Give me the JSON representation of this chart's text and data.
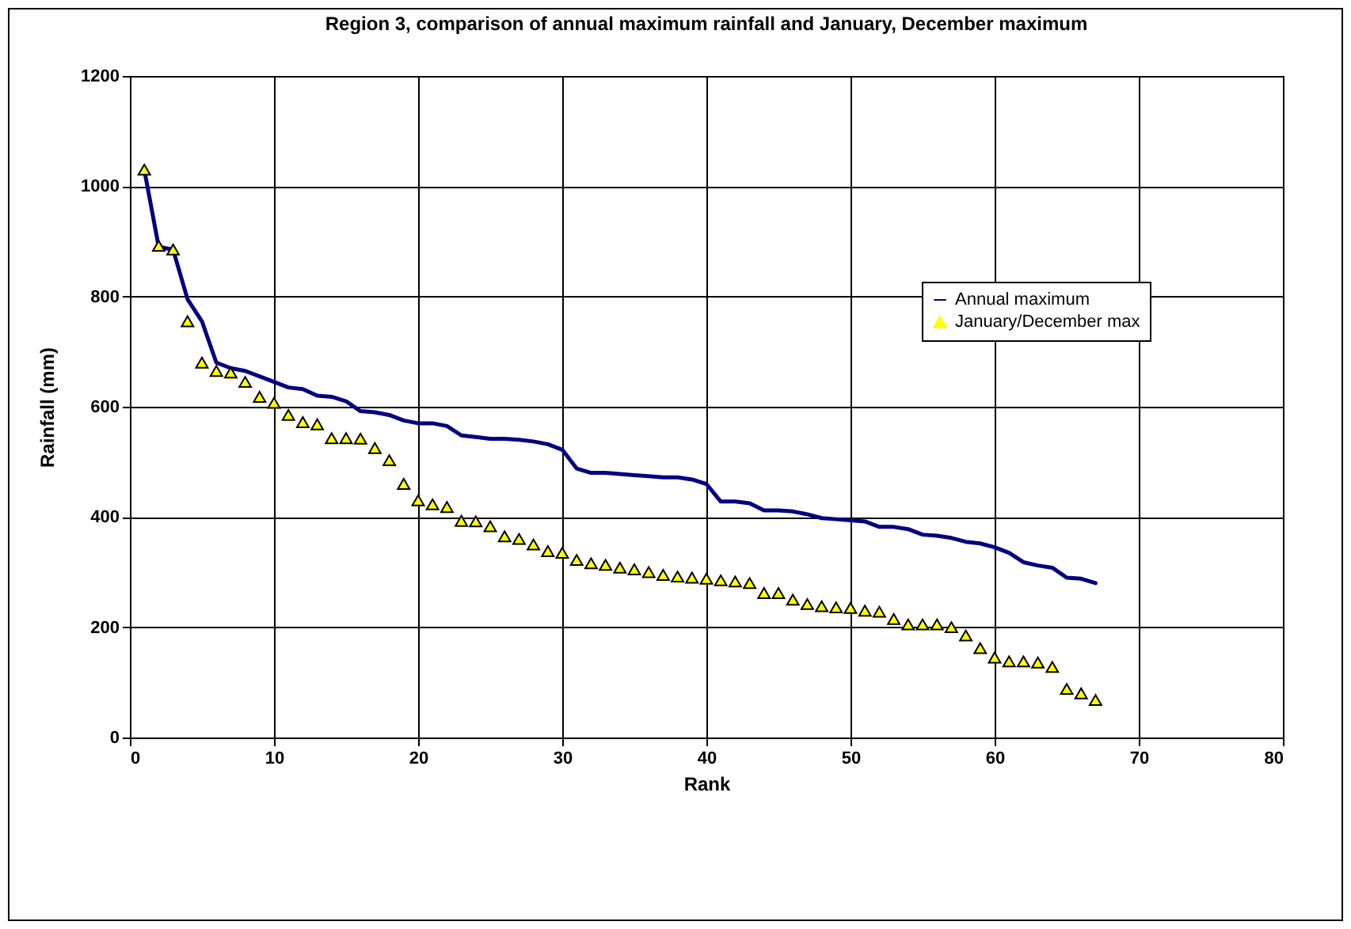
{
  "chart_data": {
    "type": "line",
    "title": "Region 3, comparison of annual maximum rainfall and January, December maximum",
    "xlabel": "Rank",
    "ylabel": "Rainfall (mm)",
    "x": [
      1,
      2,
      3,
      4,
      5,
      6,
      7,
      8,
      9,
      10,
      11,
      12,
      13,
      14,
      15,
      16,
      17,
      18,
      19,
      20,
      21,
      22,
      23,
      24,
      25,
      26,
      27,
      28,
      29,
      30,
      31,
      32,
      33,
      34,
      35,
      36,
      37,
      38,
      39,
      40,
      41,
      42,
      43,
      44,
      45,
      46,
      47,
      48,
      49,
      50,
      51,
      52,
      53,
      54,
      55,
      56,
      57,
      58,
      59,
      60,
      61,
      62,
      63,
      64,
      65,
      66,
      67
    ],
    "series": [
      {
        "name": "Annual maximum",
        "line_style": "solid",
        "color": "#000080",
        "values": [
          1030,
          890,
          885,
          795,
          755,
          680,
          670,
          665,
          655,
          645,
          635,
          632,
          620,
          618,
          610,
          592,
          590,
          585,
          575,
          570,
          570,
          565,
          548,
          545,
          542,
          542,
          540,
          537,
          532,
          522,
          488,
          480,
          480,
          478,
          476,
          474,
          472,
          472,
          468,
          460,
          428,
          428,
          425,
          412,
          412,
          410,
          405,
          398,
          396,
          394,
          392,
          382,
          382,
          378,
          368,
          366,
          362,
          355,
          352,
          345,
          335,
          318,
          312,
          308,
          290,
          288,
          280
        ]
      },
      {
        "name": "January/December max",
        "type": "scatter",
        "marker": "triangle",
        "color": "#ffff00",
        "values": [
          1030,
          892,
          885,
          755,
          680,
          665,
          662,
          645,
          618,
          607,
          585,
          572,
          568,
          543,
          543,
          542,
          525,
          503,
          460,
          430,
          423,
          418,
          393,
          392,
          383,
          365,
          360,
          350,
          338,
          335,
          322,
          316,
          313,
          308,
          305,
          300,
          295,
          292,
          290,
          288,
          285,
          283,
          280,
          262,
          262,
          250,
          242,
          238,
          236,
          235,
          230,
          228,
          215,
          205,
          205,
          205,
          200,
          185,
          162,
          145,
          138,
          138,
          136,
          128,
          88,
          80,
          68
        ]
      }
    ],
    "xlim": [
      0,
      80
    ],
    "xticks": [
      0,
      10,
      20,
      30,
      40,
      50,
      60,
      70,
      80
    ],
    "ylim": [
      0,
      1200
    ],
    "yticks": [
      0,
      200,
      400,
      600,
      800,
      1000,
      1200
    ],
    "grid": true,
    "legend": "right"
  }
}
